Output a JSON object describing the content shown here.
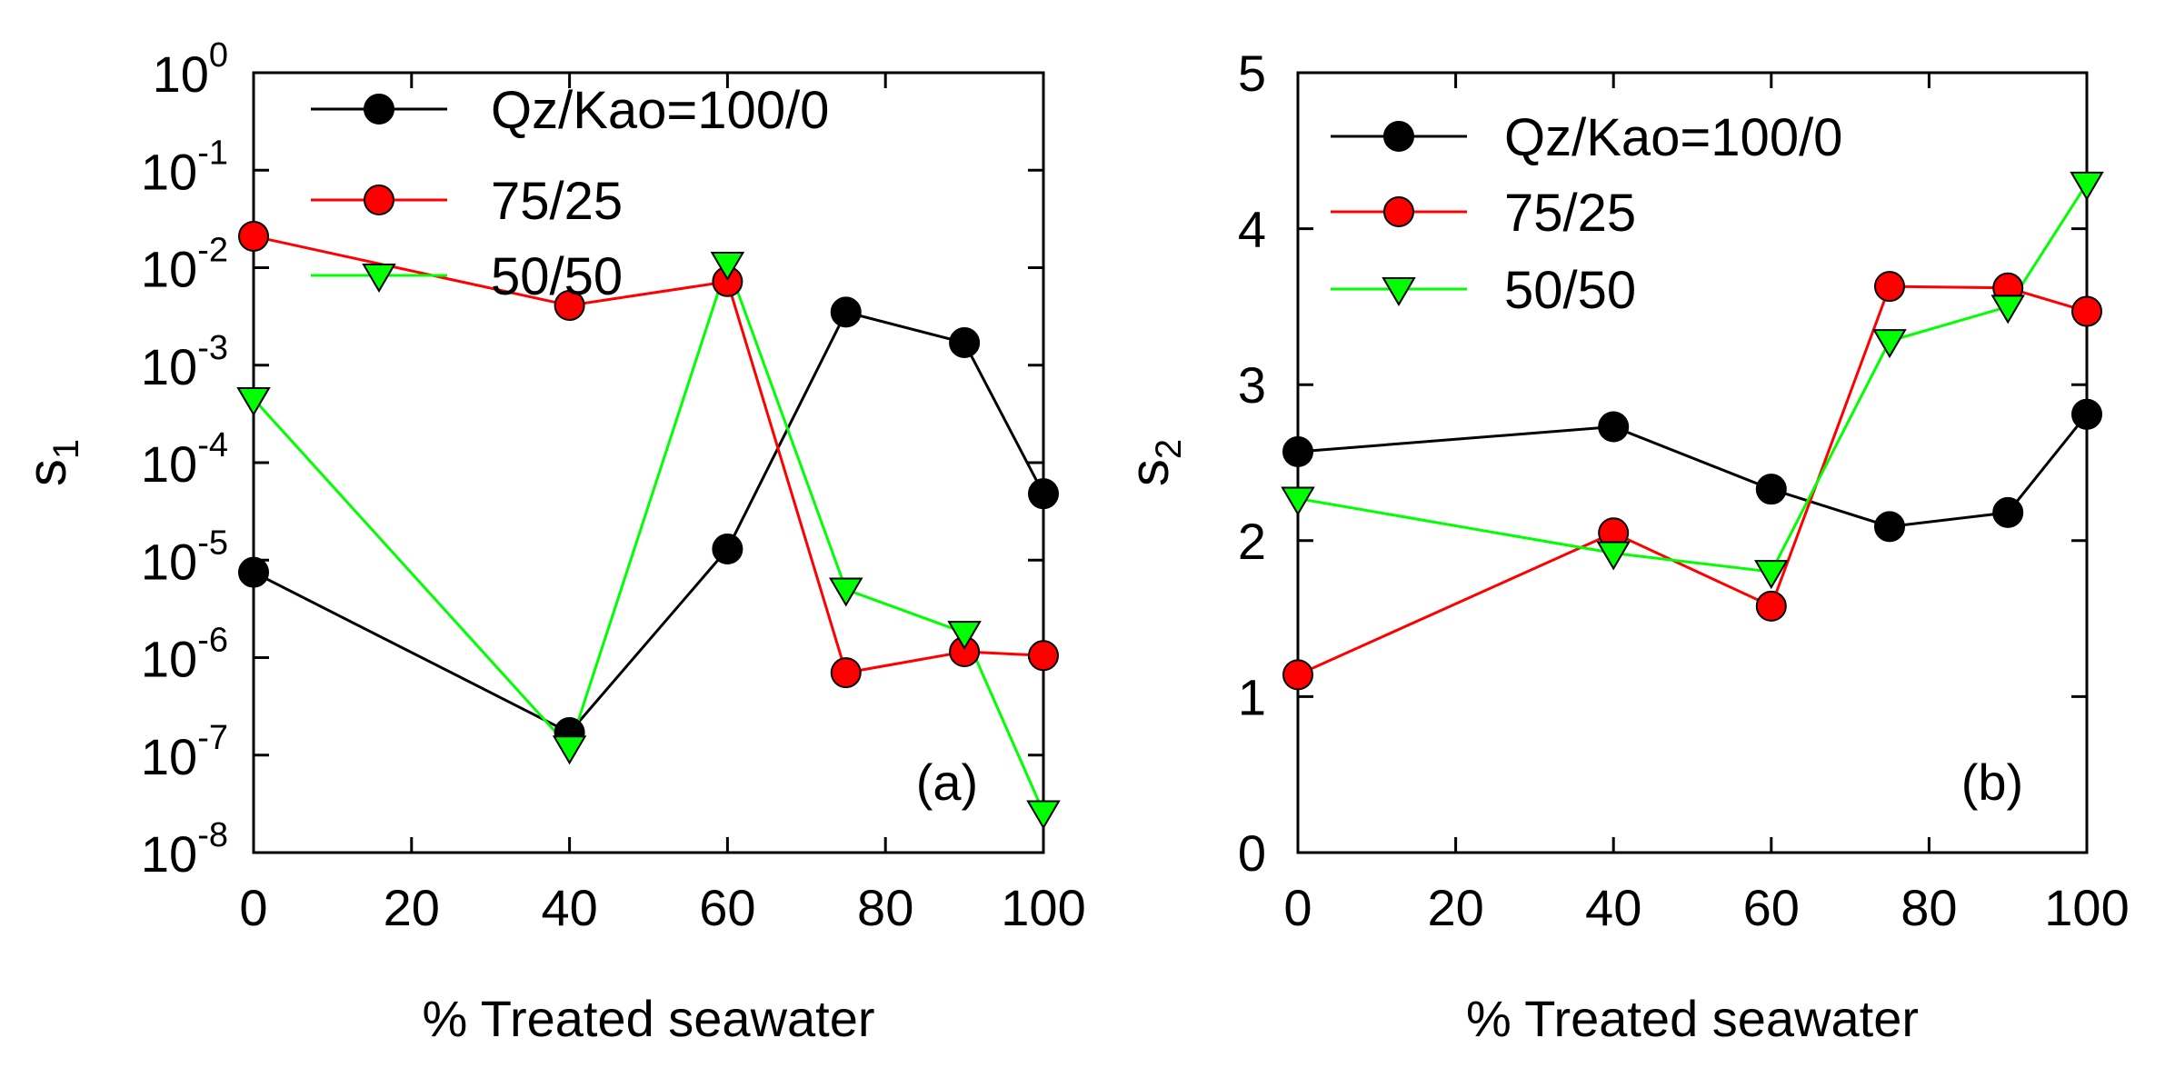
{
  "chart_data": [
    {
      "type": "line",
      "panel_label": "(a)",
      "title": "",
      "xlabel": "% Treated seawater",
      "ylabel": "s",
      "ylabel_sub": "1",
      "yscale": "log",
      "xlim": [
        0,
        100
      ],
      "ylim": [
        1e-08,
        1
      ],
      "xticks": [
        0,
        20,
        40,
        60,
        80,
        100
      ],
      "yticks": [
        {
          "value": 1e-08,
          "base": "10",
          "exp": "-8"
        },
        {
          "value": 1e-07,
          "base": "10",
          "exp": "-7"
        },
        {
          "value": 1e-06,
          "base": "10",
          "exp": "-6"
        },
        {
          "value": 1e-05,
          "base": "10",
          "exp": "-5"
        },
        {
          "value": 0.0001,
          "base": "10",
          "exp": "-4"
        },
        {
          "value": 0.001,
          "base": "10",
          "exp": "-3"
        },
        {
          "value": 0.01,
          "base": "10",
          "exp": "-2"
        },
        {
          "value": 0.1,
          "base": "10",
          "exp": "-1"
        },
        {
          "value": 1,
          "base": "10",
          "exp": "0"
        }
      ],
      "grid": false,
      "legend_position": "top-left",
      "series": [
        {
          "name": "Qz/Kao=100/0",
          "color": "#000000",
          "marker": "circle",
          "x": [
            0,
            40,
            60,
            75,
            90,
            100
          ],
          "y": [
            7.5e-06,
            1.7e-07,
            1.3e-05,
            0.0035,
            0.0017,
            4.8e-05
          ]
        },
        {
          "name": "75/25",
          "color": "#ff0000",
          "marker": "circle",
          "x": [
            0,
            40,
            60,
            75,
            90,
            100
          ],
          "y": [
            0.021,
            0.0041,
            0.0072,
            7e-07,
            1.15e-06,
            1.05e-06
          ]
        },
        {
          "name": "50/50",
          "color": "#00ff00",
          "marker": "triangle-down",
          "x": [
            0,
            40,
            60,
            75,
            90,
            100
          ],
          "y": [
            0.00045,
            1.2e-07,
            0.011,
            5e-06,
            1.8e-06,
            2.6e-08
          ]
        }
      ]
    },
    {
      "type": "line",
      "panel_label": "(b)",
      "title": "",
      "xlabel": "% Treated seawater",
      "ylabel": "s",
      "ylabel_sub": "2",
      "yscale": "linear",
      "xlim": [
        0,
        100
      ],
      "ylim": [
        0,
        5
      ],
      "xticks": [
        0,
        20,
        40,
        60,
        80,
        100
      ],
      "yticks": [
        0,
        1,
        2,
        3,
        4,
        5
      ],
      "grid": false,
      "legend_position": "top-left",
      "series": [
        {
          "name": "Qz/Kao=100/0",
          "color": "#000000",
          "marker": "circle",
          "x": [
            0,
            40,
            60,
            75,
            90,
            100
          ],
          "y": [
            2.57,
            2.73,
            2.33,
            2.09,
            2.18,
            2.81
          ]
        },
        {
          "name": "75/25",
          "color": "#ff0000",
          "marker": "circle",
          "x": [
            0,
            40,
            60,
            75,
            90,
            100
          ],
          "y": [
            1.14,
            2.05,
            1.58,
            3.63,
            3.62,
            3.47
          ]
        },
        {
          "name": "50/50",
          "color": "#00ff00",
          "marker": "triangle-down",
          "x": [
            0,
            40,
            60,
            75,
            90,
            100
          ],
          "y": [
            2.27,
            1.92,
            1.8,
            3.28,
            3.5,
            4.29
          ]
        }
      ]
    }
  ]
}
